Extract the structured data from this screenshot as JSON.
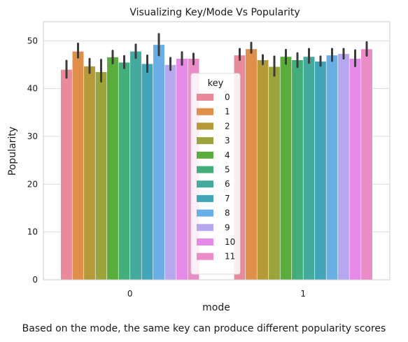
{
  "chart_data": {
    "type": "bar",
    "title": "Visualizing Key/Mode Vs Popularity",
    "xlabel": "mode",
    "ylabel": "Popularity",
    "categories": [
      "0",
      "1"
    ],
    "ylim": [
      0,
      54
    ],
    "yticks": [
      0,
      10,
      20,
      30,
      40,
      50
    ],
    "grid": true,
    "legend": {
      "title": "key",
      "placement": "center"
    },
    "series": [
      {
        "name": "0",
        "color": "#e88a9a",
        "values": [
          44.0,
          47.0
        ],
        "ci": [
          [
            42.3,
            45.8
          ],
          [
            46.0,
            48.3
          ]
        ]
      },
      {
        "name": "1",
        "color": "#e08f4a",
        "values": [
          47.8,
          48.3
        ],
        "ci": [
          [
            46.5,
            49.4
          ],
          [
            47.5,
            49.6
          ]
        ]
      },
      {
        "name": "2",
        "color": "#b59a3a",
        "values": [
          44.7,
          46.0
        ],
        "ci": [
          [
            43.3,
            46.2
          ],
          [
            45.1,
            47.0
          ]
        ]
      },
      {
        "name": "3",
        "color": "#9aa43a",
        "values": [
          43.5,
          44.6
        ],
        "ci": [
          [
            41.5,
            46.0
          ],
          [
            42.7,
            46.7
          ]
        ]
      },
      {
        "name": "4",
        "color": "#5aad3c",
        "values": [
          46.6,
          46.7
        ],
        "ci": [
          [
            45.3,
            47.9
          ],
          [
            45.2,
            48.1
          ]
        ]
      },
      {
        "name": "5",
        "color": "#44ae7b",
        "values": [
          45.5,
          46.0
        ],
        "ci": [
          [
            44.3,
            46.8
          ],
          [
            44.5,
            47.4
          ]
        ]
      },
      {
        "name": "6",
        "color": "#45aa9e",
        "values": [
          47.8,
          46.7
        ],
        "ci": [
          [
            46.4,
            49.2
          ],
          [
            45.4,
            48.3
          ]
        ]
      },
      {
        "name": "7",
        "color": "#43a6b8",
        "values": [
          45.2,
          45.7
        ],
        "ci": [
          [
            43.5,
            46.9
          ],
          [
            44.8,
            46.7
          ]
        ]
      },
      {
        "name": "8",
        "color": "#6aaee6",
        "values": [
          49.2,
          47.0
        ],
        "ci": [
          [
            47.0,
            51.4
          ],
          [
            45.8,
            48.3
          ]
        ]
      },
      {
        "name": "9",
        "color": "#b7a7ee",
        "values": [
          45.0,
          47.3
        ],
        "ci": [
          [
            43.9,
            46.4
          ],
          [
            46.3,
            48.3
          ]
        ]
      },
      {
        "name": "10",
        "color": "#e58ae8",
        "values": [
          46.3,
          46.3
        ],
        "ci": [
          [
            45.0,
            47.6
          ],
          [
            44.7,
            48.0
          ]
        ]
      },
      {
        "name": "11",
        "color": "#ea8cc7",
        "values": [
          46.3,
          48.3
        ],
        "ci": [
          [
            45.1,
            47.3
          ],
          [
            46.9,
            49.7
          ]
        ]
      }
    ]
  },
  "caption": "Based on the mode, the same key can produce different popularity scores"
}
